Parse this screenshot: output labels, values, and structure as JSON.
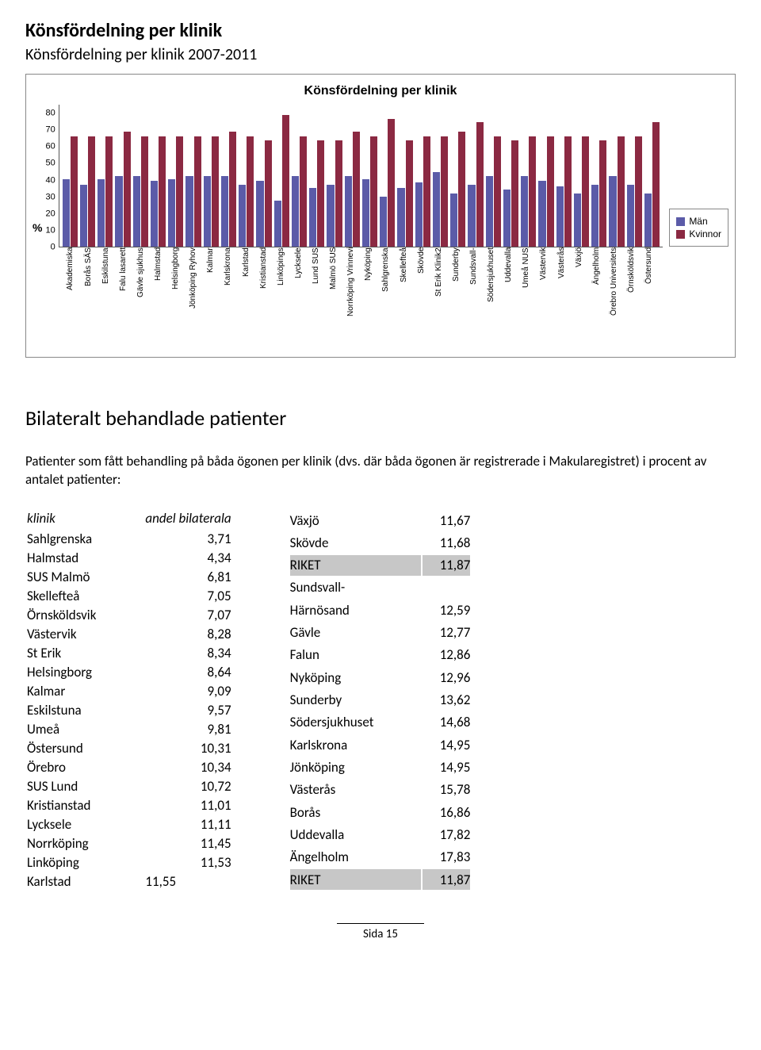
{
  "title_main": "Könsfördelning per klinik",
  "subtitle": "Könsfördelning per klinik 2007-2011",
  "chart": {
    "title": "Könsfördelning per klinik",
    "y_label": "%",
    "y_ticks": [
      0,
      10,
      20,
      30,
      40,
      50,
      60,
      70,
      80
    ],
    "ylim_max": 80,
    "bar_colors": {
      "men": "#5b5ba8",
      "women": "#8b2942"
    },
    "legend": {
      "men": "Män",
      "women": "Kvinnor"
    },
    "categories": [
      "Akademiska",
      "Borås SÄS",
      "Eskilstuna",
      "Falu lasarett",
      "Gävle sjukhus",
      "Halmstad",
      "Helsingborg",
      "Jönköping Ryhov",
      "Kalmar",
      "Karlskrona",
      "Karlstad",
      "Kristianstad",
      "Linköpings",
      "Lycksele",
      "Lund SUS",
      "Malmö SUS",
      "Norrköping Vrinnevi",
      "Nyköping",
      "Sahlgrenska",
      "Skellefteå",
      "Skövde",
      "St Erik Klinik2",
      "Sunderby",
      "Sundsvall-",
      "Södersjukhuset",
      "Uddevalla",
      "Umeå NUS",
      "Västervik",
      "Västerås",
      "Växjö",
      "Ängelholm",
      "Örebro Universitets",
      "Örnsköldsvik",
      "Östersund"
    ],
    "men": [
      38,
      35,
      38,
      40,
      40,
      37,
      38,
      40,
      40,
      40,
      35,
      37,
      26,
      40,
      33,
      35,
      40,
      38,
      28,
      33,
      36,
      42,
      30,
      35,
      40,
      32,
      40,
      37,
      34,
      30,
      35,
      40,
      35,
      30
    ],
    "women": [
      62,
      62,
      62,
      65,
      62,
      62,
      62,
      62,
      62,
      65,
      62,
      60,
      74,
      62,
      60,
      60,
      65,
      62,
      72,
      60,
      62,
      62,
      65,
      70,
      62,
      60,
      62,
      62,
      62,
      62,
      60,
      62,
      62,
      70
    ]
  },
  "h2": "Bilateralt behandlade patienter",
  "body_text": "Patienter som fått behandling på båda ögonen per klinik (dvs. där båda ögonen är registrerade i Makularegistret) i procent av antalet patienter:",
  "table_header_klinik": "klinik",
  "table_header_andel": "andel bilaterala",
  "left_rows": [
    {
      "k": "Sahlgrenska",
      "v": "3,71"
    },
    {
      "k": "Halmstad",
      "v": "4,34"
    },
    {
      "k": "SUS Malmö",
      "v": "6,81"
    },
    {
      "k": "Skellefteå",
      "v": "7,05"
    },
    {
      "k": "Örnsköldsvik",
      "v": "7,07"
    },
    {
      "k": "Västervik",
      "v": "8,28"
    },
    {
      "k": "St Erik",
      "v": "8,34"
    },
    {
      "k": "Helsingborg",
      "v": "8,64"
    },
    {
      "k": "Kalmar",
      "v": "9,09"
    },
    {
      "k": "Eskilstuna",
      "v": "9,57"
    },
    {
      "k": "Umeå",
      "v": "9,81"
    },
    {
      "k": "Östersund",
      "v": "10,31"
    },
    {
      "k": "Örebro",
      "v": "10,34"
    },
    {
      "k": "SUS Lund",
      "v": "10,72"
    },
    {
      "k": "Kristianstad",
      "v": "11,01"
    },
    {
      "k": "Lycksele",
      "v": "11,11"
    },
    {
      "k": "Norrköping",
      "v": "11,45"
    },
    {
      "k": "Linköping",
      "v": "11,53"
    }
  ],
  "left_last": {
    "k": "Karlstad",
    "v": "11,55"
  },
  "right_rows": [
    {
      "k": "Växjö",
      "v": "11,67"
    },
    {
      "k": "Skövde",
      "v": "11,68"
    },
    {
      "k": "RIKET",
      "v": "11,87",
      "hl": true
    },
    {
      "k": "Sundsvall-",
      "v": ""
    },
    {
      "k": "Härnösand",
      "v": "12,59"
    },
    {
      "k": "Gävle",
      "v": "12,77"
    },
    {
      "k": "Falun",
      "v": "12,86"
    },
    {
      "k": "Nyköping",
      "v": "12,96"
    },
    {
      "k": "Sunderby",
      "v": "13,62"
    },
    {
      "k": "Södersjukhuset",
      "v": "14,68"
    },
    {
      "k": "Karlskrona",
      "v": "14,95"
    },
    {
      "k": "Jönköping",
      "v": "14,95"
    },
    {
      "k": "Västerås",
      "v": "15,78"
    },
    {
      "k": "Borås",
      "v": "16,86"
    },
    {
      "k": "Uddevalla",
      "v": "17,82"
    },
    {
      "k": "Ängelholm",
      "v": "17,83"
    },
    {
      "k": "RIKET",
      "v": "11,87",
      "hl": true
    }
  ],
  "footer": "Sida 15"
}
